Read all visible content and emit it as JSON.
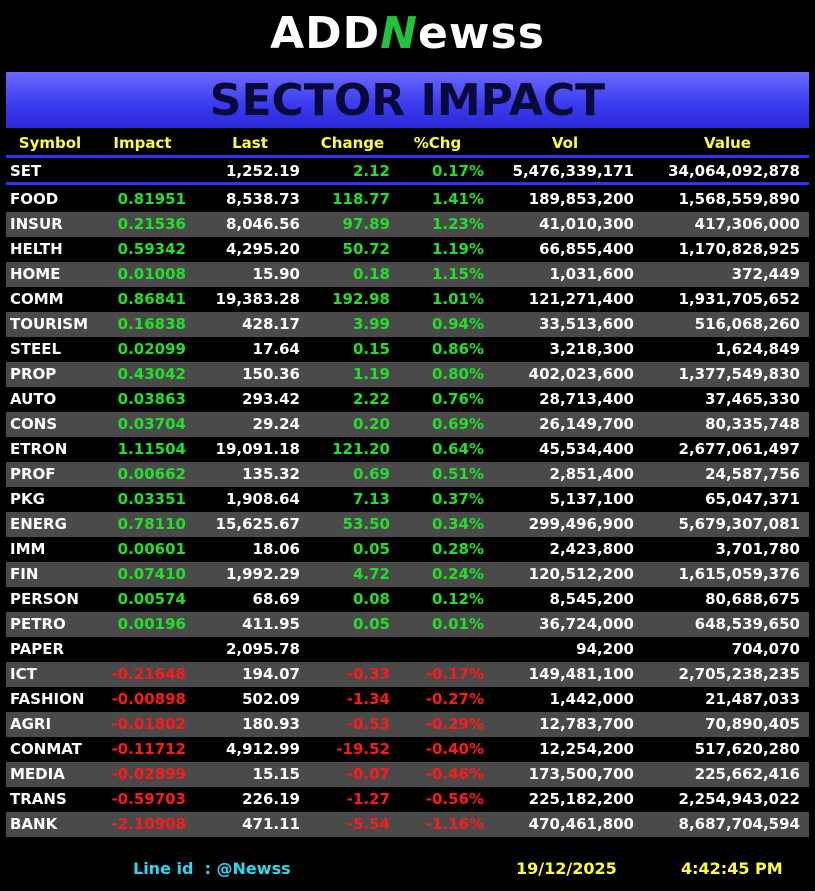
{
  "logo": {
    "left": "ADD",
    "mark": "N",
    "right": "ewss"
  },
  "title": "SECTOR IMPACT",
  "table": {
    "headers": [
      "Symbol",
      "Impact",
      "Last",
      "Change",
      "%Chg",
      "Vol",
      "Value"
    ],
    "index_row": [
      "SET",
      null,
      "1,252.19",
      "2.12",
      "0.17%",
      "5,476,339,171",
      "34,064,092,878"
    ],
    "rows": [
      [
        "FOOD",
        "0.81951",
        "8,538.73",
        "118.77",
        "1.41%",
        "189,853,200",
        "1,568,559,890"
      ],
      [
        "INSUR",
        "0.21536",
        "8,046.56",
        "97.89",
        "1.23%",
        "41,010,300",
        "417,306,000"
      ],
      [
        "HELTH",
        "0.59342",
        "4,295.20",
        "50.72",
        "1.19%",
        "66,855,400",
        "1,170,828,925"
      ],
      [
        "HOME",
        "0.01008",
        "15.90",
        "0.18",
        "1.15%",
        "1,031,600",
        "372,449"
      ],
      [
        "COMM",
        "0.86841",
        "19,383.28",
        "192.98",
        "1.01%",
        "121,271,400",
        "1,931,705,652"
      ],
      [
        "TOURISM",
        "0.16838",
        "428.17",
        "3.99",
        "0.94%",
        "33,513,600",
        "516,068,260"
      ],
      [
        "STEEL",
        "0.02099",
        "17.64",
        "0.15",
        "0.86%",
        "3,218,300",
        "1,624,849"
      ],
      [
        "PROP",
        "0.43042",
        "150.36",
        "1.19",
        "0.80%",
        "402,023,600",
        "1,377,549,830"
      ],
      [
        "AUTO",
        "0.03863",
        "293.42",
        "2.22",
        "0.76%",
        "28,713,400",
        "37,465,330"
      ],
      [
        "CONS",
        "0.03704",
        "29.24",
        "0.20",
        "0.69%",
        "26,149,700",
        "80,335,748"
      ],
      [
        "ETRON",
        "1.11504",
        "19,091.18",
        "121.20",
        "0.64%",
        "45,534,400",
        "2,677,061,497"
      ],
      [
        "PROF",
        "0.00662",
        "135.32",
        "0.69",
        "0.51%",
        "2,851,400",
        "24,587,756"
      ],
      [
        "PKG",
        "0.03351",
        "1,908.64",
        "7.13",
        "0.37%",
        "5,137,100",
        "65,047,371"
      ],
      [
        "ENERG",
        "0.78110",
        "15,625.67",
        "53.50",
        "0.34%",
        "299,496,900",
        "5,679,307,081"
      ],
      [
        "IMM",
        "0.00601",
        "18.06",
        "0.05",
        "0.28%",
        "2,423,800",
        "3,701,780"
      ],
      [
        "FIN",
        "0.07410",
        "1,992.29",
        "4.72",
        "0.24%",
        "120,512,200",
        "1,615,059,376"
      ],
      [
        "PERSON",
        "0.00574",
        "68.69",
        "0.08",
        "0.12%",
        "8,545,200",
        "80,688,675"
      ],
      [
        "PETRO",
        "0.00196",
        "411.95",
        "0.05",
        "0.01%",
        "36,724,000",
        "648,539,650"
      ],
      [
        "PAPER",
        null,
        "2,095.78",
        null,
        null,
        "94,200",
        "704,070"
      ],
      [
        "ICT",
        "-0.21648",
        "194.07",
        "-0.33",
        "-0.17%",
        "149,481,100",
        "2,705,238,235"
      ],
      [
        "FASHION",
        "-0.00898",
        "502.09",
        "-1.34",
        "-0.27%",
        "1,442,000",
        "21,487,033"
      ],
      [
        "AGRI",
        "-0.01802",
        "180.93",
        "-0.53",
        "-0.29%",
        "12,783,700",
        "70,890,405"
      ],
      [
        "CONMAT",
        "-0.11712",
        "4,912.99",
        "-19.52",
        "-0.40%",
        "12,254,200",
        "517,620,280"
      ],
      [
        "MEDIA",
        "-0.02899",
        "15.15",
        "-0.07",
        "-0.46%",
        "173,500,700",
        "225,662,416"
      ],
      [
        "TRANS",
        "-0.59703",
        "226.19",
        "-1.27",
        "-0.56%",
        "225,182,200",
        "2,254,943,022"
      ],
      [
        "BANK",
        "-2.10908",
        "471.11",
        "-5.54",
        "-1.16%",
        "470,461,800",
        "8,687,704,594"
      ]
    ]
  },
  "footer": {
    "line_id": "Line id  : @Newss",
    "date": "19/12/2025",
    "time": "4:42:45 PM"
  }
}
